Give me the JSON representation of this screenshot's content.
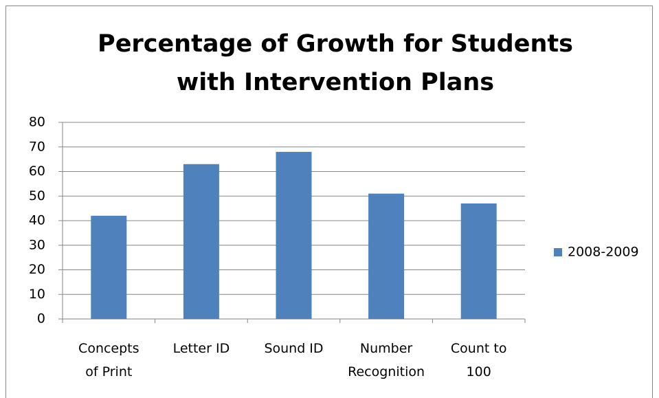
{
  "chart_data": {
    "type": "bar",
    "title": "Percentage of Growth for Students with Intervention Plans",
    "categories": [
      "Concepts of Print",
      "Letter ID",
      "Sound ID",
      "Number Recognition",
      "Count to 100"
    ],
    "series": [
      {
        "name": "2008-2009",
        "color": "#4f81bd",
        "values": [
          42,
          63,
          68,
          51,
          47
        ]
      }
    ],
    "ylim": [
      0,
      80
    ],
    "yticks": [
      0,
      10,
      20,
      30,
      40,
      50,
      60,
      70,
      80
    ],
    "grid": true,
    "legend": "right"
  }
}
